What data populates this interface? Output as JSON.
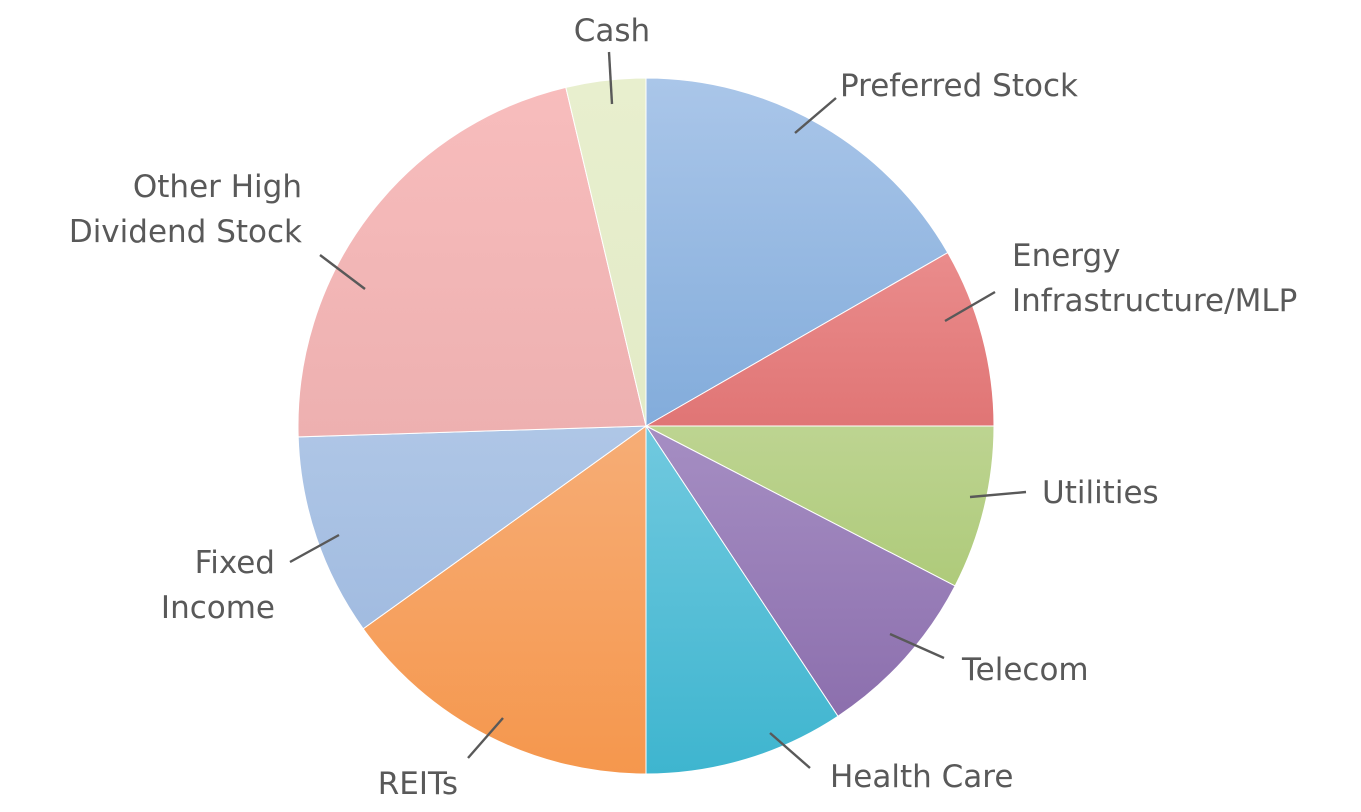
{
  "chart_data": {
    "type": "pie",
    "title": "",
    "start_angle_deg": 0,
    "direction": "clockwise",
    "legend": "none",
    "data_labels": "category-outside-with-leader-lines",
    "slices": [
      {
        "label": "Preferred Stock",
        "lines": [
          "Preferred Stock"
        ],
        "value": 16.7,
        "color": "#5b92cd",
        "light": "#aac6e9"
      },
      {
        "label": "Energy Infrastructure/MLP",
        "lines": [
          "Energy",
          "Infrastructure/MLP"
        ],
        "value": 8.3,
        "color": "#cc4747",
        "light": "#f4a3a3"
      },
      {
        "label": "Utilities",
        "lines": [
          "Utilities"
        ],
        "value": 7.6,
        "color": "#9dbf5f",
        "light": "#dde9c3"
      },
      {
        "label": "Telecom",
        "lines": [
          "Telecom"
        ],
        "value": 8.1,
        "color": "#8769a9",
        "light": "#c4b3dd"
      },
      {
        "label": "Health Care",
        "lines": [
          "Health Care"
        ],
        "value": 9.3,
        "color": "#3eb5cf",
        "light": "#a4ddef"
      },
      {
        "label": "REITs",
        "lines": [
          "REITs"
        ],
        "value": 15.1,
        "color": "#f5974d",
        "light": "#f8c39f"
      },
      {
        "label": "Fixed Income",
        "lines": [
          "Fixed",
          "Income"
        ],
        "value": 9.4,
        "color": "#98b4dc",
        "light": "#c5d8f0"
      },
      {
        "label": "Other High Dividend Stock",
        "lines": [
          "Other High",
          "Dividend Stock"
        ],
        "value": 21.8,
        "color": "#e3a4a4",
        "light": "#f8bdbd"
      },
      {
        "label": "Cash",
        "lines": [
          "Cash"
        ],
        "value": 3.7,
        "color": "#dde6c0",
        "light": "#e8efce"
      }
    ]
  }
}
